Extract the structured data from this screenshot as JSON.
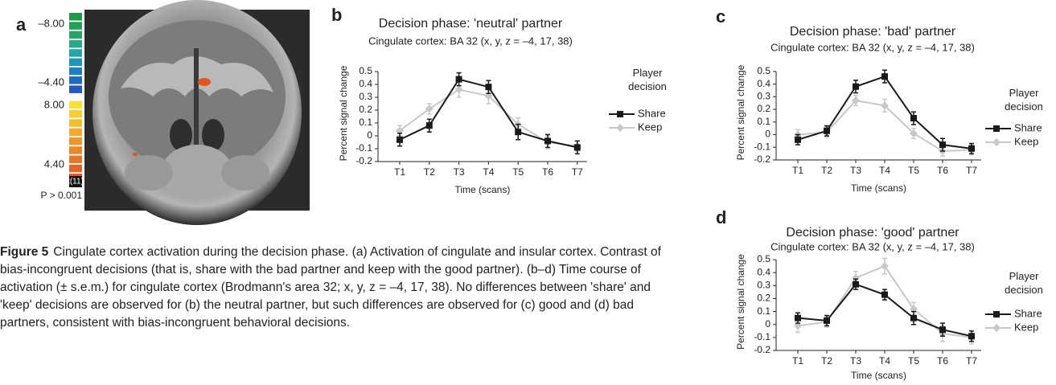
{
  "panel_labels": [
    "a",
    "b",
    "c",
    "d"
  ],
  "panel_a": {
    "colorbar_labels": [
      "–8.00",
      "–4.40",
      "8.00",
      "4.40"
    ],
    "stat_label": "t(11)",
    "threshold": "P > 0.001"
  },
  "caption": {
    "label": "Figure 5",
    "text": "Cingulate cortex activation during the decision phase. (a) Activation of cingulate and insular cortex. Contrast of bias-incongruent decisions (that is, share with the bad partner and keep with the good partner). (b–d) Time course of activation (± s.e.m.) for cingulate cortex (Brodmann's area 32; x, y, z = –4, 17, 38). No differences between 'share' and 'keep' decisions are observed for (b) the neutral partner, but such differences are observed for (c) good and (d) bad partners, consistent with bias-incongruent behavioral decisions."
  },
  "chart_data": [
    {
      "type": "line",
      "title": "Decision phase: 'neutral' partner",
      "subtitle": "Cingulate cortex: BA 32 (x, y, z = –4, 17, 38)",
      "x_label": "Time (scans)",
      "y_label": "Percent signal change",
      "legend_title": "Player decision",
      "categories": [
        "T1",
        "T2",
        "T3",
        "T4",
        "T5",
        "T6",
        "T7"
      ],
      "series": [
        {
          "name": "Share",
          "color": "#1a1a1a",
          "values": [
            -0.03,
            0.08,
            0.44,
            0.38,
            0.03,
            -0.04,
            -0.09
          ],
          "errors": [
            0.05,
            0.05,
            0.05,
            0.05,
            0.06,
            0.05,
            0.05
          ]
        },
        {
          "name": "Keep",
          "color": "#c8c8c8",
          "values": [
            0.04,
            0.21,
            0.36,
            0.31,
            0.09,
            -0.05,
            -0.08
          ],
          "errors": [
            0.04,
            0.04,
            0.06,
            0.06,
            0.05,
            0.05,
            0.04
          ]
        }
      ],
      "ylim": [
        -0.2,
        0.55
      ],
      "yticks": [
        -0.2,
        -0.1,
        0,
        0.1,
        0.2,
        0.3,
        0.4,
        0.5
      ]
    },
    {
      "type": "line",
      "title": "Decision phase: 'bad' partner",
      "subtitle": "Cingulate cortex: BA 32 (x, y, z = –4, 17, 38)",
      "x_label": "Time (scans)",
      "y_label": "Percent signal change",
      "legend_title": "Player decision",
      "categories": [
        "T1",
        "T2",
        "T3",
        "T4",
        "T5",
        "T6",
        "T7"
      ],
      "series": [
        {
          "name": "Share",
          "color": "#1a1a1a",
          "values": [
            -0.04,
            0.03,
            0.38,
            0.46,
            0.13,
            -0.08,
            -0.11
          ],
          "errors": [
            0.04,
            0.04,
            0.05,
            0.05,
            0.05,
            0.05,
            0.04
          ]
        },
        {
          "name": "Keep",
          "color": "#c8c8c8",
          "values": [
            0.0,
            0.02,
            0.27,
            0.23,
            0.01,
            -0.13,
            -0.12
          ],
          "errors": [
            0.04,
            0.04,
            0.04,
            0.05,
            0.04,
            0.04,
            0.04
          ]
        }
      ],
      "ylim": [
        -0.2,
        0.55
      ],
      "yticks": [
        -0.2,
        -0.1,
        0,
        0.1,
        0.2,
        0.3,
        0.4,
        0.5
      ]
    },
    {
      "type": "line",
      "title": "Decision phase: 'good' partner",
      "subtitle": "Cingulate cortex: BA 32 (x, y, z = –4, 17, 38)",
      "x_label": "Time (scans)",
      "y_label": "Percent signal change",
      "legend_title": "Player decision",
      "categories": [
        "T1",
        "T2",
        "T3",
        "T4",
        "T5",
        "T6",
        "T7"
      ],
      "series": [
        {
          "name": "Share",
          "color": "#1a1a1a",
          "values": [
            0.05,
            0.03,
            0.31,
            0.23,
            0.05,
            -0.04,
            -0.09
          ],
          "errors": [
            0.04,
            0.04,
            0.04,
            0.04,
            0.05,
            0.05,
            0.04
          ]
        },
        {
          "name": "Keep",
          "color": "#c8c8c8",
          "values": [
            -0.01,
            0.02,
            0.36,
            0.45,
            0.12,
            -0.07,
            -0.1
          ],
          "errors": [
            0.05,
            0.04,
            0.05,
            0.06,
            0.05,
            0.06,
            0.05
          ]
        }
      ],
      "ylim": [
        -0.2,
        0.55
      ],
      "yticks": [
        -0.2,
        -0.1,
        0,
        0.1,
        0.2,
        0.3,
        0.4,
        0.5
      ]
    }
  ]
}
